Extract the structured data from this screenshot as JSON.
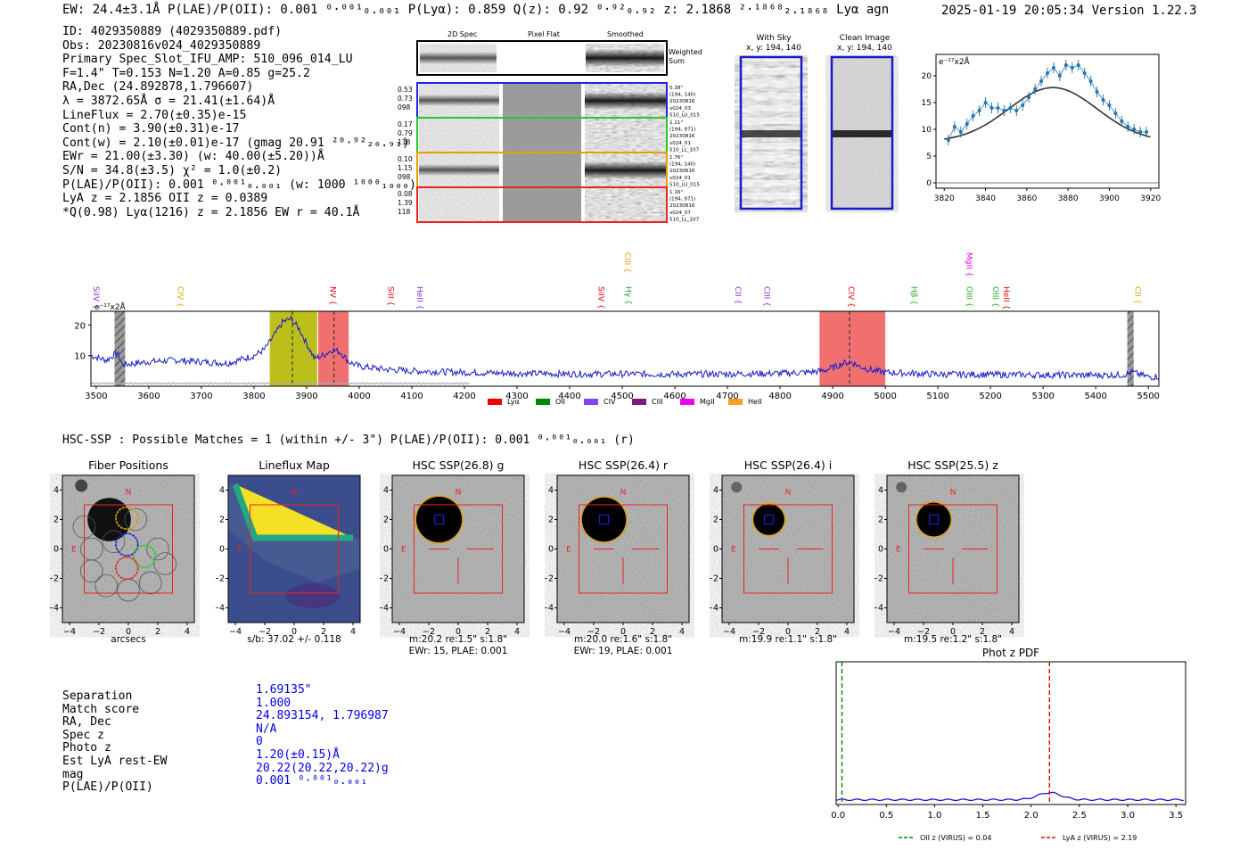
{
  "header": {
    "left": "EW: 24.4±3.1Å  P(LAE)/P(OII): 0.001 ⁰·⁰⁰¹₀.₀₀₁  P(Lyα): 0.859  Q(z): 0.92 ⁰·⁹²₀.₉₂  z: 2.1868 ²·¹⁸⁶⁸₂.₁₈₆₈ Lyα  agn",
    "right": "2025-01-19 20:05:34  Version 1.22.3"
  },
  "info": {
    "lines": [
      "ID: 4029350889 (4029350889.pdf)",
      "Obs: 20230816v024_4029350889",
      "Primary Spec_Slot_IFU_AMP: 510_096_014_LU",
      "F=1.4\"  T=0.153  N=1.20  A=0.85  g=25.2",
      "RA,Dec (24.892878,1.796607)",
      "λ = 3872.65Å  σ = 21.41(±1.64)Å",
      "LineFlux = 2.70(±0.35)e-15",
      "Cont(n) = 3.90(±0.31)e-17",
      "Cont(w) = 2.10(±0.01)e-17 (gmag 20.91 ²⁰·⁹²₂₀.₉₁)",
      "EWr = 21.00(±3.30) (w: 40.00(±5.20))Å",
      "S/N = 34.8(±3.5)  χ² = 1.0(±0.2)",
      "P(LAE)/P(OII): 0.001 ⁰·⁰⁰¹₀.₀₀₁ (w: 1000 ¹⁰⁰⁰₁₀₀₀)",
      "LyA z = 2.1856  OII z = 0.0389",
      "*Q(0.98) Lyα(1216) z = 2.1856  EW r = 40.1Å"
    ]
  },
  "cutouts": {
    "col_headers": [
      "2D Spec",
      "Pixel Flat",
      "Smoothed"
    ],
    "weighted_label": "Weighted Sum",
    "rows": [
      {
        "left": [
          "0.53",
          "0.73",
          "098"
        ],
        "right": [
          "0.38\"",
          "(194, 140)",
          "20230816",
          "v024_03",
          "510_LU_015"
        ],
        "color": "#2222ee"
      },
      {
        "left": [
          "0.17",
          "0.79",
          "118"
        ],
        "right": [
          "1.21\"",
          "(194, 971)",
          "20230816",
          "v024_01",
          "510_LL_107"
        ],
        "color": "#22cc22"
      },
      {
        "left": [
          "0.10",
          "1.15",
          "098"
        ],
        "right": [
          "1.76\"",
          "(194, 140)",
          "20230816",
          "v024_01",
          "510_LU_015"
        ],
        "color": "#e8a000"
      },
      {
        "left": [
          "0.08",
          "1.39",
          "118"
        ],
        "right": [
          "1.16\"",
          "(194, 971)",
          "20230816",
          "v024_07",
          "510_LL_107"
        ],
        "color": "#ee2222"
      }
    ]
  },
  "sky_panels": [
    {
      "title": "With Sky",
      "coords": "x, y: 194, 140"
    },
    {
      "title": "Clean Image",
      "coords": "x, y: 194, 140"
    }
  ],
  "line_fit": {
    "unit_label": "e⁻¹⁷x2Å",
    "x_ticks": [
      "3820",
      "3840",
      "3860",
      "3880",
      "3900",
      "3920"
    ],
    "y_ticks": [
      "0",
      "5",
      "10",
      "15",
      "20"
    ],
    "chart_data": {
      "type": "scatter",
      "x": [
        3822,
        3825,
        3828,
        3831,
        3834,
        3837,
        3840,
        3843,
        3846,
        3849,
        3852,
        3855,
        3858,
        3861,
        3864,
        3867,
        3870,
        3873,
        3876,
        3879,
        3882,
        3885,
        3888,
        3891,
        3894,
        3897,
        3900,
        3903,
        3906,
        3909,
        3912,
        3915,
        3918
      ],
      "y": [
        8,
        10.5,
        9.5,
        11,
        12.5,
        13.5,
        15,
        14,
        14,
        13.5,
        14,
        13.5,
        14.5,
        16,
        17.5,
        19,
        20.5,
        21.5,
        20,
        22,
        21.5,
        22,
        20.5,
        19,
        17,
        15.5,
        14.5,
        13,
        11.5,
        10.5,
        10,
        9.5,
        9.5
      ],
      "fit_center": 3872.65,
      "fit_sigma": 21.41,
      "fit_peak": 17.8,
      "fit_base": 7.7,
      "xlim": [
        3816,
        3924
      ],
      "ylim": [
        -1,
        24
      ]
    }
  },
  "spectrum": {
    "unit_label": "e⁻¹⁷x2Å",
    "y_ticks": [
      "10",
      "20"
    ],
    "x_ticks": [
      "3500",
      "3600",
      "3700",
      "3800",
      "3900",
      "4000",
      "4100",
      "4200",
      "4300",
      "4400",
      "4500",
      "4600",
      "4700",
      "4800",
      "4900",
      "5000",
      "5100",
      "5200",
      "5300",
      "5400",
      "5500"
    ],
    "line_labels": [
      {
        "text": "SiIV",
        "wave": 3500,
        "color": "#8a2be2"
      },
      {
        "text": "CIV",
        "wave": 3660,
        "color": "#e8a000"
      },
      {
        "text": "NV",
        "wave": 3950,
        "color": "#ee0000"
      },
      {
        "text": "SiII",
        "wave": 4060,
        "color": "#ee0000"
      },
      {
        "text": "HeII",
        "wave": 4115,
        "color": "#8a2be2"
      },
      {
        "text": "SiIV",
        "wave": 4460,
        "color": "#ee0000"
      },
      {
        "text": "CIII",
        "wave": 4510,
        "color": "#e8a000"
      },
      {
        "text": "Hγ",
        "wave": 4512,
        "color": "#22aa22"
      },
      {
        "text": "CII",
        "wave": 4720,
        "color": "#8a2be2"
      },
      {
        "text": "CIII",
        "wave": 4775,
        "color": "#8a2be2"
      },
      {
        "text": "CIV",
        "wave": 4935,
        "color": "#ee0000"
      },
      {
        "text": "Hβ",
        "wave": 5055,
        "color": "#22aa22"
      },
      {
        "text": "MgII",
        "wave": 5160,
        "color": "#ee00ee"
      },
      {
        "text": "OIII",
        "wave": 5160,
        "color": "#22aa22"
      },
      {
        "text": "OIII",
        "wave": 5210,
        "color": "#22aa22"
      },
      {
        "text": "HeII",
        "wave": 5230,
        "color": "#ee0000"
      },
      {
        "text": "CII",
        "wave": 5480,
        "color": "#e8a000"
      }
    ],
    "legend": [
      {
        "label": "Lyα",
        "color": "#ee0000"
      },
      {
        "label": "OII",
        "color": "#008800"
      },
      {
        "label": "CIV",
        "color": "#8844ee"
      },
      {
        "label": "CIII",
        "color": "#7a1a7a"
      },
      {
        "label": "MgII",
        "color": "#ee00ee"
      },
      {
        "label": "HeII",
        "color": "#f5a020"
      }
    ],
    "chart_data": {
      "type": "line",
      "xlim": [
        3490,
        5520
      ],
      "ylim": [
        0,
        24.5
      ],
      "bands": [
        {
          "x0": 3830,
          "x1": 3920,
          "color": "#b5b800"
        },
        {
          "x0": 3922,
          "x1": 3980,
          "color": "#ee6060"
        },
        {
          "x0": 4875,
          "x1": 5000,
          "color": "#ee6060"
        }
      ],
      "hatched": [
        [
          3535,
          3555
        ],
        [
          5460,
          5472
        ]
      ],
      "dashed_lines": [
        3873,
        3952,
        4932
      ],
      "anchor_x": [
        3490,
        3520,
        3540,
        3550,
        3600,
        3650,
        3700,
        3750,
        3780,
        3800,
        3820,
        3840,
        3855,
        3870,
        3885,
        3900,
        3915,
        3930,
        3950,
        3965,
        3980,
        4000,
        4050,
        4100,
        4200,
        4300,
        4400,
        4500,
        4600,
        4700,
        4800,
        4850,
        4880,
        4900,
        4920,
        4935,
        4950,
        4980,
        5000,
        5100,
        5200,
        5300,
        5400,
        5450,
        5470,
        5500,
        5520
      ],
      "anchor_y": [
        10,
        8.5,
        11,
        7,
        8,
        8.5,
        8,
        7.5,
        9,
        10,
        12,
        17,
        21,
        22,
        19,
        14,
        9,
        10,
        12,
        11,
        8,
        6.5,
        5.5,
        5,
        4.5,
        4.2,
        4,
        4,
        3.9,
        4,
        4.2,
        4.5,
        5,
        6,
        7.5,
        8,
        6.5,
        5,
        4.5,
        3.9,
        3.8,
        3.7,
        3.6,
        3.7,
        4.5,
        3,
        3.2
      ]
    }
  },
  "hsc": {
    "title": "HSC-SSP : Possible Matches = 1 (within +/- 3\")  P(LAE)/P(OII): 0.001 ⁰·⁰⁰¹₀.₀₀₁ (r)",
    "panels": [
      {
        "title": "Fiber Positions",
        "cap1": "arcsecs",
        "cap2": ""
      },
      {
        "title": "Lineflux Map",
        "cap1": "s/b: 37.02 +/- 0.118",
        "cap2": ""
      },
      {
        "title": "HSC SSP(26.8) g",
        "cap1": "m:20.2  re:1.5\"  s:1.8\"",
        "cap2": "EWr: 15, PLAE: 0.001"
      },
      {
        "title": "HSC SSP(26.4) r",
        "cap1": "m:20.0  re:1.6\"  s:1.8\"",
        "cap2": "EWr: 19, PLAE: 0.001"
      },
      {
        "title": "HSC SSP(26.4) i",
        "cap1": "m:19.9  re:1.1\"  s:1.8\"",
        "cap2": ""
      },
      {
        "title": "HSC SSP(25.5) z",
        "cap1": "m:19.5  re:1.2\"  s:1.8\"",
        "cap2": ""
      }
    ],
    "ticks": [
      "-4",
      "-2",
      "0",
      "2",
      "4"
    ],
    "compass_n": "N",
    "compass_e": "E"
  },
  "match": {
    "labels": [
      "Separation",
      "Match score",
      "RA, Dec",
      "Spec z",
      "Photo z",
      "Est LyA rest-EW",
      "mag",
      "P(LAE)/P(OII)"
    ],
    "values": [
      "1.69135\"",
      "1.000",
      "24.893154, 1.796987",
      "N/A",
      "0",
      "1.20(±0.15)Å",
      "20.22(20.22,20.22)g",
      "0.001 ⁰·⁰⁰¹₀.₀₀₁"
    ]
  },
  "photz": {
    "title": "Phot z PDF",
    "x_ticks": [
      "0.0",
      "0.5",
      "1.0",
      "1.5",
      "2.0",
      "2.5",
      "3.0",
      "3.5"
    ],
    "legend": [
      {
        "label": "OII z (VIRUS) = 0.04",
        "color": "#008800"
      },
      {
        "label": "LyA z (VIRUS) = 2.19",
        "color": "#ee0000"
      }
    ],
    "chart_data": {
      "type": "line",
      "xlim": [
        -0.02,
        3.6
      ],
      "oii_z": 0.04,
      "lya_z": 2.19,
      "baseline": 0.02,
      "bump_center": 2.19,
      "bump_height": 0.03
    }
  }
}
